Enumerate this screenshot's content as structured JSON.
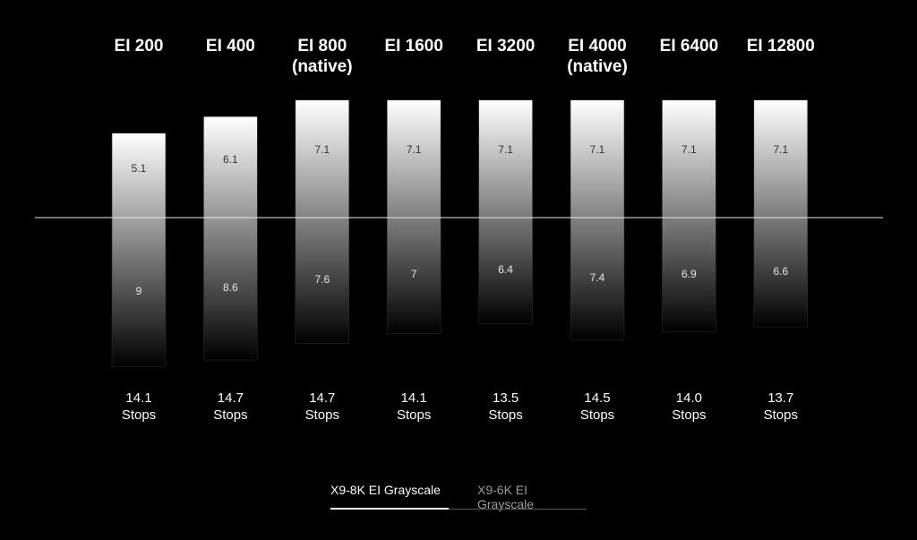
{
  "chart_data": {
    "type": "bar",
    "categories": [
      "EI 200",
      "EI 400",
      "EI 800",
      "EI 1600",
      "EI 3200",
      "EI 4000",
      "EI 6400",
      "EI 12800"
    ],
    "category_sublabels": [
      "",
      "",
      "(native)",
      "",
      "",
      "(native)",
      "",
      ""
    ],
    "series": [
      {
        "values": [
          5.1,
          6.1,
          7.1,
          7.1,
          7.1,
          7.1,
          7.1,
          7.1
        ]
      },
      {
        "values": [
          9,
          8.6,
          7.6,
          7,
          6.4,
          7.4,
          6.9,
          6.6
        ]
      }
    ],
    "value_labels_top": [
      "5.1",
      "6.1",
      "7.1",
      "7.1",
      "7.1",
      "7.1",
      "7.1",
      "7.1"
    ],
    "value_labels_bottom": [
      "9",
      "8.6",
      "7.6",
      "7",
      "6.4",
      "7.4",
      "6.9",
      "6.6"
    ],
    "totals": [
      "14.1",
      "14.7",
      "14.7",
      "14.1",
      "13.5",
      "14.5",
      "14.0",
      "13.7"
    ],
    "totals_unit": "Stops",
    "grid": false,
    "colors": {
      "background": "#000000",
      "bar_top": "#ffffff",
      "bar_bottom": "#000000",
      "baseline": "#ffffff"
    }
  },
  "tabs": [
    {
      "label": "X9-8K EI Grayscale",
      "active": true
    },
    {
      "label": "X9-6K EI Grayscale",
      "active": false
    }
  ]
}
